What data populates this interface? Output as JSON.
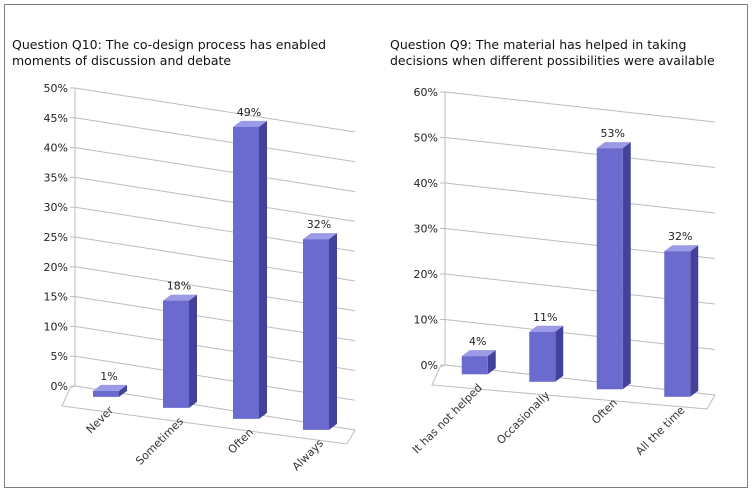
{
  "chart_data": [
    {
      "type": "bar",
      "title": "Question Q10: The co-design process has enabled\nmoments of discussion and debate",
      "categories": [
        "Never",
        "Sometimes",
        "Often",
        "Always"
      ],
      "values": [
        1,
        18,
        49,
        32
      ],
      "data_labels": [
        "1%",
        "18%",
        "49%",
        "32%"
      ],
      "yticks": [
        "0%",
        "5%",
        "10%",
        "15%",
        "20%",
        "25%",
        "30%",
        "35%",
        "40%",
        "45%",
        "50%"
      ],
      "ylim": [
        0,
        50
      ],
      "grid": true,
      "style": "3d-column",
      "colors": {
        "front": "#6a6acf",
        "side": "#42429a",
        "top": "#9a9ae6"
      }
    },
    {
      "type": "bar",
      "title": "Question Q9: The material has helped in taking\ndecisions when different possibilities were available",
      "categories": [
        "It has not helped",
        "Occasionally",
        "Often",
        "All the time"
      ],
      "values": [
        4,
        11,
        53,
        32
      ],
      "data_labels": [
        "4%",
        "11%",
        "53%",
        "32%"
      ],
      "yticks": [
        "0%",
        "10%",
        "20%",
        "30%",
        "40%",
        "50%",
        "60%"
      ],
      "ylim": [
        0,
        60
      ],
      "grid": true,
      "style": "3d-column",
      "colors": {
        "front": "#6a6acf",
        "side": "#42429a",
        "top": "#9a9ae6"
      }
    }
  ]
}
